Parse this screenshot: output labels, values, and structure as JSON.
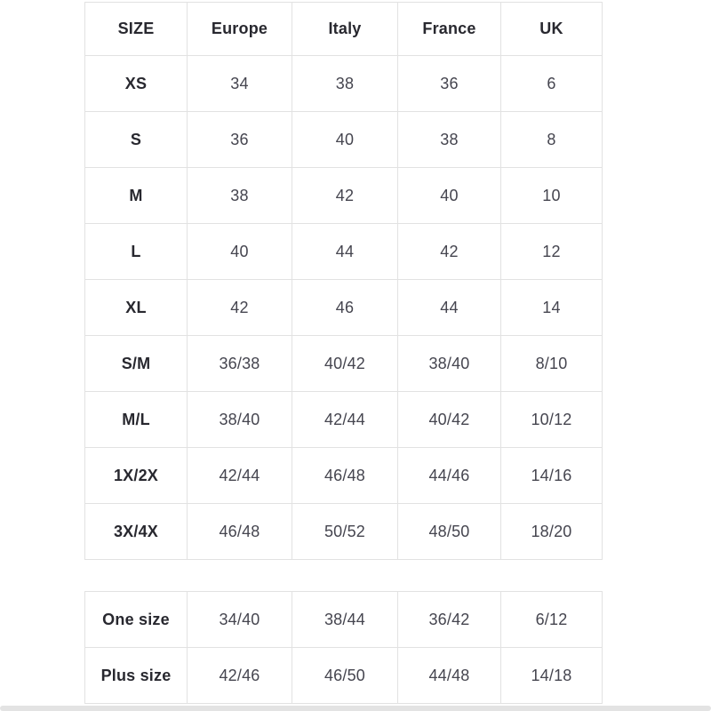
{
  "colors": {
    "background": "#ffffff",
    "table_border": "#e2e2e2",
    "header_text": "#28282f",
    "value_text": "#45454f",
    "bottom_bar": "#e3e3e3"
  },
  "size_table": {
    "columns": [
      "SIZE",
      "Europe",
      "Italy",
      "France",
      "UK"
    ],
    "rows": [
      {
        "size": "XS",
        "values": [
          "34",
          "38",
          "36",
          "6"
        ]
      },
      {
        "size": "S",
        "values": [
          "36",
          "40",
          "38",
          "8"
        ]
      },
      {
        "size": "M",
        "values": [
          "38",
          "42",
          "40",
          "10"
        ]
      },
      {
        "size": "L",
        "values": [
          "40",
          "44",
          "42",
          "12"
        ]
      },
      {
        "size": "XL",
        "values": [
          "42",
          "46",
          "44",
          "14"
        ]
      },
      {
        "size": "S/M",
        "values": [
          "36/38",
          "40/42",
          "38/40",
          "8/10"
        ]
      },
      {
        "size": "M/L",
        "values": [
          "38/40",
          "42/44",
          "40/42",
          "10/12"
        ]
      },
      {
        "size": "1X/2X",
        "values": [
          "42/44",
          "46/48",
          "44/46",
          "14/16"
        ]
      },
      {
        "size": "3X/4X",
        "values": [
          "46/48",
          "50/52",
          "48/50",
          "18/20"
        ]
      }
    ]
  },
  "special_table": {
    "rows": [
      {
        "size": "One size",
        "values": [
          "34/40",
          "38/44",
          "36/42",
          "6/12"
        ]
      },
      {
        "size": "Plus size",
        "values": [
          "42/46",
          "46/50",
          "44/48",
          "14/18"
        ]
      }
    ]
  }
}
